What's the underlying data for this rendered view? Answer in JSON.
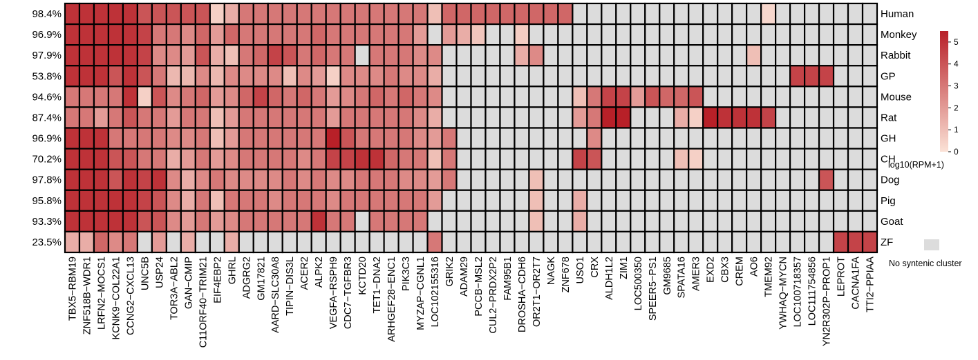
{
  "chart_data": {
    "type": "heatmap",
    "title": "",
    "colorbar": {
      "label": "log10(RPM+1)",
      "ticks": [
        0,
        1,
        2,
        3,
        4,
        5
      ],
      "low_color": "#fbe2d6",
      "high_color": "#b82028",
      "max": 5.5
    },
    "missing": {
      "label": "No syntenic cluster",
      "color": "#dcdcdc"
    },
    "rows": [
      "Human",
      "Monkey",
      "Rabbit",
      "GP",
      "Mouse",
      "Rat",
      "GH",
      "CH",
      "Dog",
      "Pig",
      "Goat",
      "ZF"
    ],
    "row_percentages": [
      "98.4%",
      "96.9%",
      "97.9%",
      "53.8%",
      "94.6%",
      "87.4%",
      "96.9%",
      "70.2%",
      "97.8%",
      "95.8%",
      "93.3%",
      "23.5%"
    ],
    "columns": [
      "TBX5−RBM19",
      "ZNF518B−WDR1",
      "LRFN2−MOCS1",
      "KCNK9−COL22A1",
      "CCNG2−CXCL13",
      "UNC5B",
      "USP24",
      "TOR3A−ABL2",
      "GAN−CMIP",
      "C11ORF40−TRIM21",
      "EIF4EBP2",
      "GHRL",
      "ADGRG2",
      "GM17821",
      "AARD−SLC30A8",
      "TIPIN−DIS3L",
      "ACER2",
      "ALPK2",
      "VEGFA−RSPH9",
      "CDC7−TGFBR3",
      "KCTD20",
      "TET1−DNA2",
      "ARHGEF28−ENC1",
      "PIK3C3",
      "MYZAP−CGNL1",
      "LOC102155316",
      "GRIK2",
      "ADAM29",
      "PCCB−MSL2",
      "CUL2−PRDX2P2",
      "FAM95B1",
      "DROSHA−CDH6",
      "OR2T1−OR2T7",
      "NAGK",
      "ZNF678",
      "USO1",
      "CRX",
      "ALDH1L2",
      "ZIM1",
      "LOC500350",
      "SPEER5−PS1",
      "GM9685",
      "SPATA16",
      "AMER3",
      "EXD2",
      "CBX3",
      "CREM",
      "AO6",
      "TMEM92",
      "YWHAQ−MYCN",
      "LOC100718357",
      "LOC111754856",
      "YN2R302P−PROP1",
      "LEPROT",
      "CACNA1FA",
      "TTI2−PPIAA"
    ],
    "values": [
      [
        5,
        5,
        5,
        5,
        5,
        4,
        4,
        4,
        4,
        4,
        0.5,
        1.5,
        3,
        3,
        3,
        3,
        3,
        3,
        3,
        3,
        3,
        3,
        3,
        3,
        3,
        1,
        3.5,
        3.5,
        3.5,
        3.5,
        3.5,
        3.5,
        3.5,
        3.5,
        3.5,
        null,
        null,
        null,
        null,
        null,
        null,
        null,
        null,
        null,
        null,
        null,
        null,
        null,
        0.3,
        null,
        null,
        null,
        null,
        null,
        null,
        null
      ],
      [
        5,
        5,
        5,
        5,
        5,
        4.5,
        3,
        3,
        2.5,
        3.5,
        2,
        3.5,
        3,
        3,
        3,
        3,
        3,
        3.5,
        3,
        3,
        3,
        3,
        3,
        3,
        2,
        null,
        2,
        1.5,
        0.8,
        null,
        null,
        0.6,
        null,
        null,
        null,
        null,
        null,
        null,
        null,
        null,
        null,
        null,
        null,
        null,
        null,
        null,
        null,
        null,
        null,
        null,
        null,
        null,
        null,
        null,
        null,
        null
      ],
      [
        5,
        5,
        5,
        5,
        5,
        4.5,
        2.5,
        2.5,
        2,
        4,
        1.5,
        1,
        3,
        3.5,
        4.5,
        4,
        3,
        3.5,
        3,
        3,
        null,
        3,
        3,
        3,
        2.5,
        2.5,
        null,
        null,
        null,
        null,
        null,
        1.5,
        2.5,
        null,
        null,
        null,
        null,
        null,
        null,
        null,
        null,
        null,
        null,
        null,
        null,
        null,
        null,
        1,
        null,
        null,
        null,
        null,
        null,
        null,
        null,
        null
      ],
      [
        5,
        5,
        5,
        4,
        5,
        4,
        3,
        1.2,
        1.2,
        2.5,
        1.2,
        2.5,
        2.5,
        2.5,
        2.5,
        1,
        2.5,
        2,
        0.5,
        2.5,
        2.5,
        2.5,
        3,
        2.5,
        2.5,
        1.5,
        null,
        null,
        null,
        null,
        null,
        null,
        null,
        null,
        null,
        null,
        null,
        null,
        null,
        null,
        null,
        null,
        null,
        null,
        null,
        null,
        null,
        null,
        null,
        null,
        4.5,
        4.5,
        4.5,
        null,
        null,
        null
      ],
      [
        3,
        3,
        3,
        3,
        5,
        0.5,
        4,
        2.5,
        3,
        3.5,
        2,
        2.5,
        3.5,
        4.5,
        3.5,
        3,
        3.5,
        3,
        2,
        2.5,
        3,
        3.5,
        3,
        3.5,
        3,
        2.5,
        null,
        null,
        null,
        null,
        null,
        null,
        null,
        null,
        null,
        1,
        3,
        4.5,
        4.5,
        2,
        4,
        3.5,
        3.5,
        4,
        null,
        null,
        null,
        null,
        null,
        null,
        null,
        null,
        null,
        null,
        null,
        null
      ],
      [
        3,
        3,
        2,
        3,
        4,
        3,
        3,
        2,
        3,
        3,
        1,
        2,
        3,
        3,
        3,
        3,
        3,
        3,
        2,
        3,
        3,
        3,
        3,
        3,
        2.5,
        1.5,
        null,
        null,
        null,
        null,
        null,
        null,
        null,
        null,
        null,
        2,
        3,
        5.5,
        5.5,
        null,
        null,
        null,
        1.5,
        0.5,
        5.5,
        5,
        5,
        5,
        4.5,
        null,
        null,
        null,
        null,
        null,
        null,
        null
      ],
      [
        5,
        5,
        5,
        3,
        3,
        3,
        3,
        2.5,
        2.5,
        3,
        1,
        2,
        3,
        3,
        3,
        3,
        3,
        3,
        5.5,
        4,
        3,
        3,
        3,
        3,
        2.5,
        2,
        3,
        null,
        null,
        null,
        null,
        null,
        null,
        null,
        null,
        null,
        2.5,
        null,
        null,
        null,
        null,
        null,
        null,
        null,
        null,
        null,
        null,
        null,
        null,
        null,
        null,
        null,
        null,
        null,
        null,
        null
      ],
      [
        5,
        5,
        5,
        4,
        4,
        3,
        3,
        1.5,
        2,
        3,
        2,
        2.5,
        3,
        3,
        3,
        3,
        2.5,
        3,
        4.5,
        4.5,
        5,
        5,
        3.5,
        3,
        3,
        1,
        3,
        null,
        null,
        null,
        null,
        null,
        null,
        null,
        null,
        4.5,
        4,
        null,
        null,
        null,
        null,
        null,
        1,
        0.5,
        null,
        null,
        null,
        null,
        null,
        null,
        null,
        null,
        null,
        null,
        null,
        null
      ],
      [
        5,
        5,
        5,
        4,
        5,
        4.5,
        5,
        2.5,
        1.5,
        2.5,
        3,
        2.5,
        2.5,
        2.5,
        2.5,
        3,
        2.5,
        3,
        2.5,
        2.5,
        3,
        3,
        3,
        2.5,
        2.5,
        2,
        3,
        null,
        null,
        null,
        null,
        null,
        1,
        null,
        null,
        null,
        null,
        null,
        null,
        null,
        null,
        null,
        null,
        null,
        null,
        null,
        null,
        null,
        null,
        null,
        null,
        null,
        4,
        null,
        null,
        null
      ],
      [
        5,
        5,
        5,
        5,
        5,
        4.5,
        4,
        2.5,
        1.5,
        3,
        1,
        3,
        3,
        3,
        2.5,
        3,
        3,
        3,
        2.5,
        3,
        3,
        3,
        3,
        3,
        3,
        2,
        null,
        null,
        null,
        null,
        null,
        null,
        1,
        null,
        null,
        1.5,
        null,
        null,
        null,
        null,
        null,
        null,
        null,
        null,
        null,
        null,
        null,
        null,
        null,
        null,
        null,
        null,
        null,
        null,
        null,
        null
      ],
      [
        5,
        5,
        5,
        5,
        5,
        4,
        4,
        2.5,
        2,
        3,
        2,
        2.5,
        3,
        3,
        3,
        3,
        3,
        5,
        3,
        3,
        null,
        3,
        3,
        3,
        3,
        null,
        null,
        null,
        null,
        null,
        null,
        null,
        1,
        null,
        null,
        1.5,
        null,
        null,
        null,
        null,
        null,
        null,
        null,
        null,
        null,
        null,
        null,
        null,
        null,
        null,
        null,
        null,
        null,
        null,
        null,
        null
      ],
      [
        1.5,
        1.5,
        3.5,
        2.5,
        3,
        null,
        2,
        null,
        1.5,
        null,
        null,
        1.5,
        null,
        null,
        null,
        null,
        null,
        null,
        null,
        null,
        null,
        null,
        null,
        null,
        null,
        3,
        null,
        null,
        null,
        null,
        null,
        null,
        null,
        null,
        null,
        null,
        null,
        null,
        null,
        null,
        null,
        null,
        null,
        null,
        null,
        null,
        null,
        null,
        null,
        null,
        null,
        null,
        null,
        4.5,
        4.5,
        4.5
      ]
    ]
  }
}
